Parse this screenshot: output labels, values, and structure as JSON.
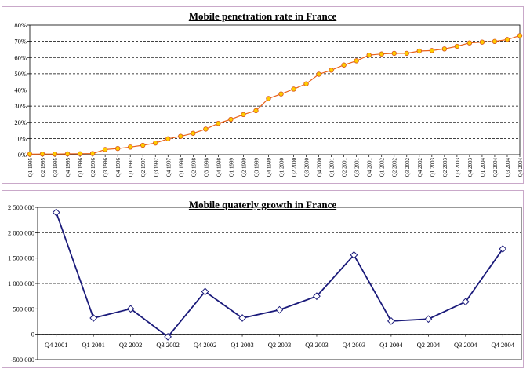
{
  "chart_data": [
    {
      "type": "line",
      "title": "Mobile penetration rate in France",
      "xlabel": "",
      "ylabel": "",
      "categories": [
        "Q1 1995",
        "Q2 1995",
        "Q3 1995",
        "Q4 1995",
        "Q1 1996",
        "Q2 1996",
        "Q3 1996",
        "Q4 1996",
        "Q1 1997",
        "Q2 1997",
        "Q3 1997",
        "Q4 1997",
        "Q1 1998",
        "Q2 1998",
        "Q3 1998",
        "Q4 1998",
        "Q1 1999",
        "Q2 1999",
        "Q3 1999",
        "Q4 1999",
        "Q1 2000",
        "Q2 2000",
        "Q3 2000",
        "Q4 2000",
        "Q1 2001",
        "Q2 2001",
        "Q3 2001",
        "Q4 2001",
        "Q1 2002",
        "Q2 2002",
        "Q3 2002",
        "Q4 2002",
        "Q1 2003",
        "Q2 2003",
        "Q3 2003",
        "Q4 2003",
        "Q1 2004",
        "Q2 2004",
        "Q3 2004",
        "Q4 2004"
      ],
      "values": [
        0.3,
        0.4,
        0.4,
        0.5,
        0.6,
        0.7,
        3.2,
        3.8,
        4.7,
        5.8,
        7.2,
        9.8,
        11.3,
        13.2,
        15.8,
        19.3,
        21.8,
        24.8,
        27.2,
        34.7,
        37.5,
        40.5,
        43.8,
        49.7,
        52.2,
        55.4,
        58.0,
        61.5,
        62.2,
        62.6,
        62.6,
        64.0,
        64.3,
        65.3,
        66.9,
        69.0,
        69.5,
        69.9,
        71.1,
        73.5
      ],
      "yticks": [
        "0%",
        "10%",
        "20%",
        "30%",
        "40%",
        "50%",
        "60%",
        "70%",
        "80%"
      ],
      "ylim": [
        0,
        80
      ],
      "grid": true,
      "legend": "none",
      "line_color": "#e8601a",
      "marker_fill": "#ffcc00",
      "marker_stroke": "#d9541a"
    },
    {
      "type": "line",
      "title": "Mobile quaterly growth in France",
      "xlabel": "",
      "ylabel": "",
      "categories": [
        "Q4 2001",
        "Q1 2001",
        "Q2 2002",
        "Q3 2002",
        "Q4 2002",
        "Q1 2003",
        "Q2 2003",
        "Q3 2003",
        "Q4 2003",
        "Q1 2004",
        "Q2 2004",
        "Q3 2004",
        "Q4 2004"
      ],
      "values": [
        2400000,
        320000,
        500000,
        -50000,
        840000,
        320000,
        480000,
        750000,
        1560000,
        260000,
        300000,
        640000,
        1680000
      ],
      "yticks": [
        "-500 000",
        "0",
        "500 000",
        "1 000 000",
        "1 500 000",
        "2 000 000",
        "2 500 000"
      ],
      "ylim": [
        -500000,
        2500000
      ],
      "grid": true,
      "legend": "none",
      "line_color": "#1a1a7a",
      "marker_fill": "#ffffff",
      "marker_stroke": "#1a1a7a"
    }
  ]
}
